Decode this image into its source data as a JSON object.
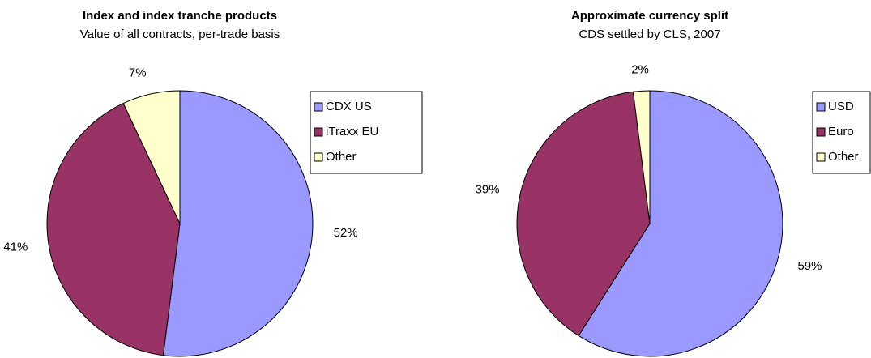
{
  "chart_data": [
    {
      "type": "pie",
      "title": "Index and index tranche products",
      "subtitle": "Value of all contracts, per-trade basis",
      "categories": [
        "CDX US",
        "iTraxx EU",
        "Other"
      ],
      "values": [
        52,
        41,
        7
      ],
      "value_labels": [
        "52%",
        "41%",
        "7%"
      ],
      "colors": [
        "#9999ff",
        "#993366",
        "#ffffcc"
      ],
      "legend": "right"
    },
    {
      "type": "pie",
      "title": "Approximate currency split",
      "subtitle": "CDS settled by CLS, 2007",
      "categories": [
        "USD",
        "Euro",
        "Other"
      ],
      "values": [
        59,
        39,
        2
      ],
      "value_labels": [
        "59%",
        "39%",
        "2%"
      ],
      "colors": [
        "#9999ff",
        "#993366",
        "#ffffcc"
      ],
      "legend": "right"
    }
  ]
}
